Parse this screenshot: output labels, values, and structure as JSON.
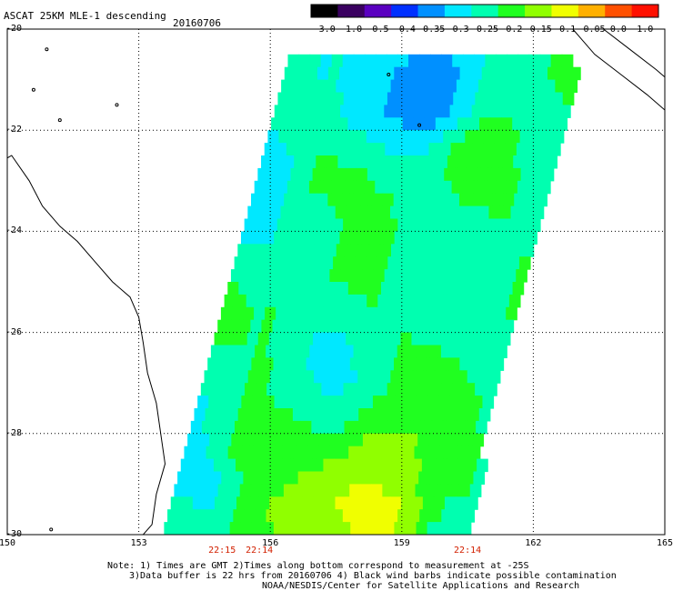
{
  "header": {
    "title": "ASCAT 25KM MLE-1 descending",
    "date": "20160706"
  },
  "colorbar": {
    "labels": [
      "-3.0",
      "-1.0",
      "-0.5",
      "-0.4",
      "-0.35",
      "-0.3",
      "-0.25",
      "-0.2",
      "-0.15",
      "-0.1",
      "-0.05",
      "0.0",
      "1.0"
    ],
    "colors": [
      "#000000",
      "#3a0060",
      "#5a00c0",
      "#0030ff",
      "#0090ff",
      "#00e8ff",
      "#00ffb0",
      "#20ff20",
      "#90ff00",
      "#f0ff00",
      "#ffb000",
      "#ff5000",
      "#ff1000"
    ]
  },
  "axes": {
    "lon_ticks": [
      "150",
      "153",
      "156",
      "159",
      "162",
      "165"
    ],
    "lat_ticks": [
      "-20",
      "-22",
      "-24",
      "-26",
      "-28",
      "-30"
    ]
  },
  "times": [
    {
      "label": "22:15",
      "lon": 154.9
    },
    {
      "label": "22:14",
      "lon": 155.75
    },
    {
      "label": "22:14",
      "lon": 160.5
    }
  ],
  "notes": {
    "line1": "Note: 1) Times are GMT 2)Times along bottom correspond to measurement at -25S",
    "line2": "3)Data buffer is 22 hrs from 20160706 4) Black wind barbs indicate possible contamination",
    "line3": "NOAA/NESDIS/Center for Satellite Applications and Research"
  },
  "swath": {
    "corners": [
      [
        156.4,
        -20.5
      ],
      [
        162.9,
        -20.5
      ],
      [
        160.3,
        -30.0
      ],
      [
        153.5,
        -30.0
      ]
    ],
    "hotspots": [
      {
        "lon": 158.3,
        "lat": -29.5,
        "level": 10
      },
      {
        "lon": 158.1,
        "lat": -29.1,
        "level": 9
      },
      {
        "lon": 158.5,
        "lat": -28.2,
        "level": 8
      },
      {
        "lon": 156.2,
        "lat": -29.5,
        "level": 8
      },
      {
        "lon": 159.6,
        "lat": -20.9,
        "level": 3
      },
      {
        "lon": 159.3,
        "lat": -21.5,
        "level": 4
      },
      {
        "lon": 157.0,
        "lat": -23.8,
        "level": 6
      },
      {
        "lon": 160.0,
        "lat": -24.8,
        "level": 6
      },
      {
        "lon": 155.3,
        "lat": -28.0,
        "level": 7
      }
    ]
  }
}
